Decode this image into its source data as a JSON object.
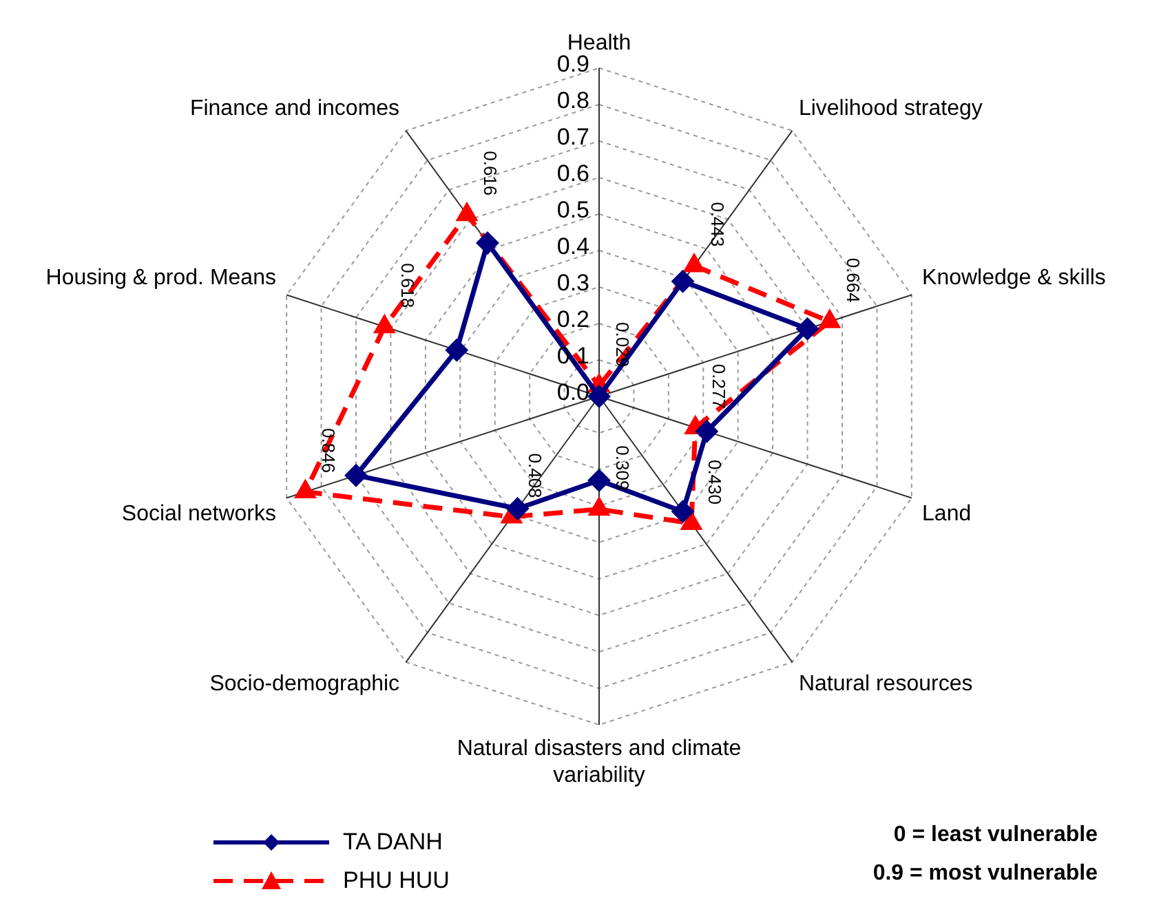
{
  "chart_data": {
    "type": "radar",
    "categories": [
      "Health",
      "Livelihood strategy",
      "Knowledge & skills",
      "Land",
      "Natural resources",
      "Natural disasters and climate variability",
      "Socio-demographic",
      "Social networks",
      "Housing & prod. Means",
      "Finance and incomes"
    ],
    "series": [
      {
        "name": "TA DANH",
        "color": "#000080",
        "marker": "diamond",
        "line_style": "solid",
        "values": [
          0,
          0.39,
          0.6,
          0.31,
          0.39,
          0.23,
          0.38,
          0.7,
          0.41,
          0.52
        ]
      },
      {
        "name": "PHU HUU",
        "color": "#ff0000",
        "marker": "triangle",
        "line_style": "dashed",
        "values": [
          0.029,
          0.443,
          0.664,
          0.277,
          0.43,
          0.309,
          0.408,
          0.846,
          0.618,
          0.616
        ],
        "value_labels": [
          "0.029",
          "0.443",
          "0.664",
          "0.277",
          "0.430",
          "0.309",
          "0.408",
          "0.846",
          "0.618",
          "0.616"
        ]
      }
    ],
    "ylim": [
      0,
      0.9
    ],
    "yticks": [
      {
        "value": 0,
        "label": "0.0"
      },
      {
        "value": 0.1,
        "label": "0.1"
      },
      {
        "value": 0.2,
        "label": "0.2"
      },
      {
        "value": 0.3,
        "label": "0.3"
      },
      {
        "value": 0.4,
        "label": "0.4"
      },
      {
        "value": 0.5,
        "label": "0.5"
      },
      {
        "value": 0.6,
        "label": "0.6"
      },
      {
        "value": 0.7,
        "label": "0.7"
      },
      {
        "value": 0.8,
        "label": "0.8"
      },
      {
        "value": 0.9,
        "label": "0.9"
      }
    ],
    "grid": true,
    "legend": "bottom left",
    "annotations": [
      "0 = least vulnerable",
      "0.9 = most vulnerable"
    ]
  }
}
